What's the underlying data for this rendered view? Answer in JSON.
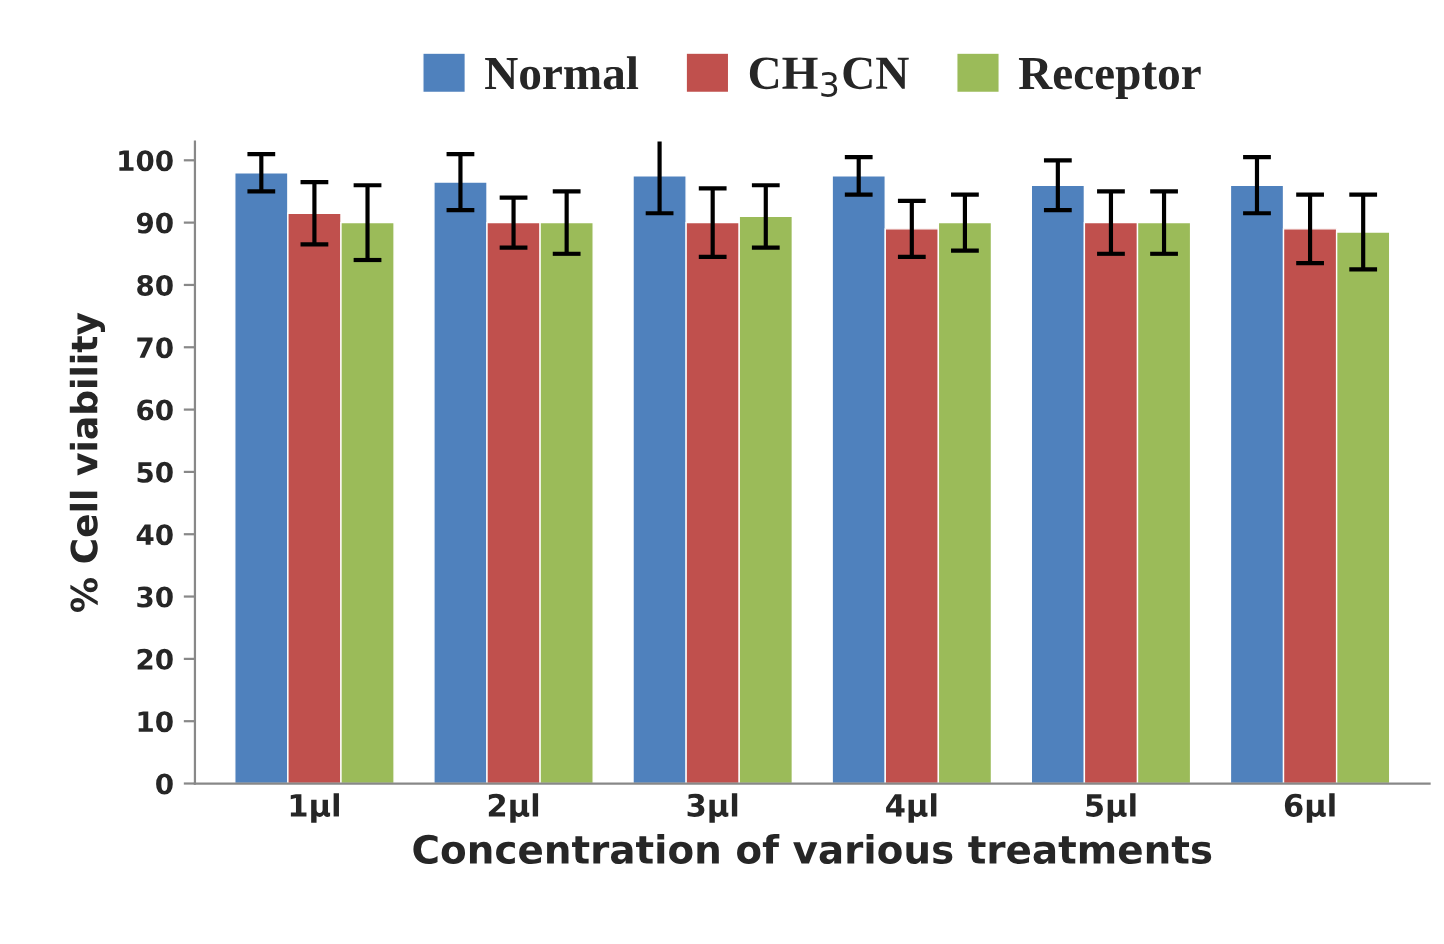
{
  "chart_data": {
    "type": "bar",
    "xlabel": "Concentration of various treatments",
    "ylabel": "% Cell viability",
    "categories": [
      "1µl",
      "2µl",
      "3µl",
      "4µl",
      "5µl",
      "6µl"
    ],
    "series": [
      {
        "name": "Normal",
        "color": "#4f81bd",
        "values": [
          98,
          96.5,
          97.5,
          97.5,
          96,
          96
        ],
        "errors": [
          3,
          4.5,
          6,
          3,
          4,
          4.5
        ]
      },
      {
        "name": "CH$_{3}$CN",
        "color": "#c0504d",
        "values": [
          91.5,
          90,
          90,
          89,
          90,
          89
        ],
        "errors": [
          5,
          4,
          5.5,
          4.5,
          5,
          5.5
        ]
      },
      {
        "name": "Receptor",
        "color": "#9bbb59",
        "values": [
          90,
          90,
          91,
          90,
          90,
          88.5
        ],
        "errors": [
          6,
          5,
          5,
          4.5,
          5,
          6
        ]
      }
    ],
    "ylim": [
      0,
      103
    ],
    "yticks": [
      0,
      10,
      20,
      30,
      40,
      50,
      60,
      70,
      80,
      90,
      100
    ],
    "grid": false,
    "legend": "top"
  }
}
